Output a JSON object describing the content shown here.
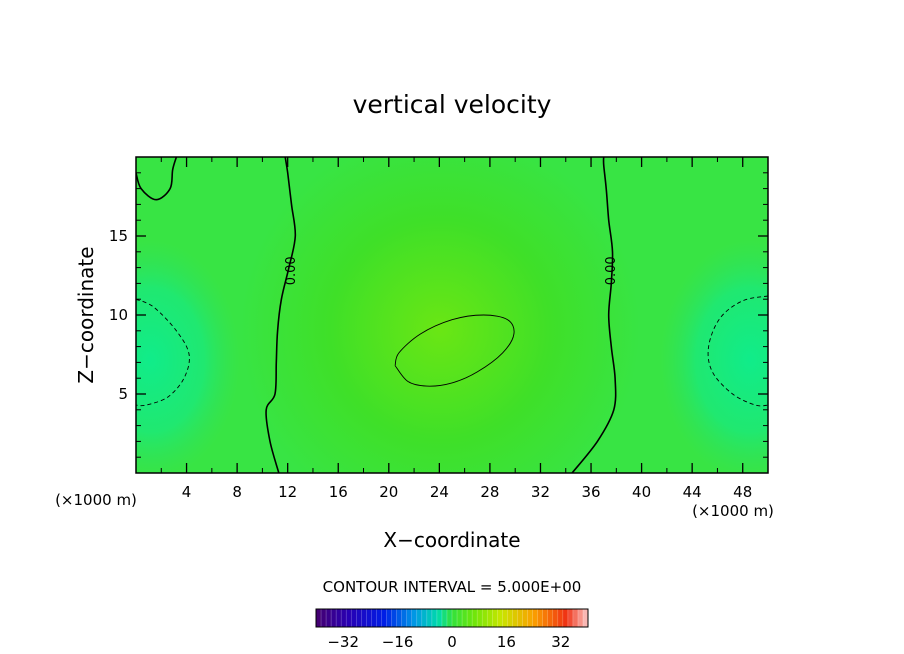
{
  "chart_data": {
    "type": "heatmap",
    "title": "vertical velocity",
    "xlabel": "X−coordinate",
    "ylabel": "Z−coordinate",
    "x_unit_left": "(×1000 m)",
    "x_unit_right": "(×1000 m)",
    "xlim": [
      0,
      50
    ],
    "ylim": [
      0,
      20
    ],
    "x_ticks": [
      4,
      8,
      12,
      16,
      20,
      24,
      28,
      32,
      36,
      40,
      44,
      48
    ],
    "y_ticks": [
      5,
      10,
      15
    ],
    "contour_interval_text": "CONTOUR INTERVAL = 5.000E+00",
    "contour_labels": [
      {
        "text": "0.00",
        "x": 12.3,
        "z": 12.8
      },
      {
        "text": "0.00",
        "x": 37.6,
        "z": 12.8
      }
    ],
    "zero_contours": [
      {
        "name": "left",
        "points": [
          [
            11.3,
            0
          ],
          [
            10.6,
            2
          ],
          [
            10.3,
            4
          ],
          [
            11.0,
            5
          ],
          [
            11.1,
            7
          ],
          [
            11.2,
            9
          ],
          [
            11.5,
            11
          ],
          [
            12.1,
            13
          ],
          [
            12.6,
            15
          ],
          [
            12.3,
            17
          ],
          [
            12.0,
            19
          ],
          [
            11.8,
            20
          ]
        ]
      },
      {
        "name": "right",
        "points": [
          [
            34.5,
            0
          ],
          [
            36.5,
            2
          ],
          [
            37.8,
            4
          ],
          [
            37.9,
            6
          ],
          [
            37.6,
            8
          ],
          [
            37.4,
            10
          ],
          [
            37.6,
            12
          ],
          [
            37.7,
            14
          ],
          [
            37.4,
            16
          ],
          [
            37.2,
            18
          ],
          [
            37.0,
            19.5
          ],
          [
            37.0,
            20
          ]
        ]
      },
      {
        "name": "top-left-blob",
        "points": [
          [
            0,
            19
          ],
          [
            0.4,
            18
          ],
          [
            1.6,
            17.3
          ],
          [
            2.7,
            18
          ],
          [
            2.9,
            19.2
          ],
          [
            3.2,
            20
          ]
        ]
      }
    ],
    "positive_contours": [
      {
        "name": "center-max",
        "points": [
          [
            20.5,
            6.8
          ],
          [
            21.5,
            5.8
          ],
          [
            23,
            5.5
          ],
          [
            25,
            5.7
          ],
          [
            27,
            6.4
          ],
          [
            29,
            7.6
          ],
          [
            29.9,
            8.8
          ],
          [
            29.4,
            9.7
          ],
          [
            27.5,
            10
          ],
          [
            25,
            9.7
          ],
          [
            22.5,
            8.8
          ],
          [
            20.8,
            7.6
          ],
          [
            20.5,
            6.8
          ]
        ]
      }
    ],
    "negative_contours": [
      {
        "name": "left-min",
        "points": [
          [
            0,
            11
          ],
          [
            1.4,
            10.5
          ],
          [
            3.2,
            9
          ],
          [
            4.2,
            7.5
          ],
          [
            3.8,
            6
          ],
          [
            2.5,
            4.8
          ],
          [
            0.8,
            4.3
          ],
          [
            0,
            4.3
          ]
        ]
      },
      {
        "name": "right-min",
        "points": [
          [
            50,
            11.2
          ],
          [
            48,
            10.9
          ],
          [
            46.2,
            9.8
          ],
          [
            45.3,
            8
          ],
          [
            45.6,
            6.4
          ],
          [
            47.2,
            5
          ],
          [
            49,
            4.3
          ],
          [
            50,
            4.3
          ]
        ]
      }
    ],
    "colorbar": {
      "min": -40,
      "max": 40,
      "tick_values": [
        -32,
        -16,
        0,
        16,
        32
      ],
      "tick_labels": [
        "−32",
        "−16",
        "0",
        "16",
        "32"
      ]
    }
  }
}
